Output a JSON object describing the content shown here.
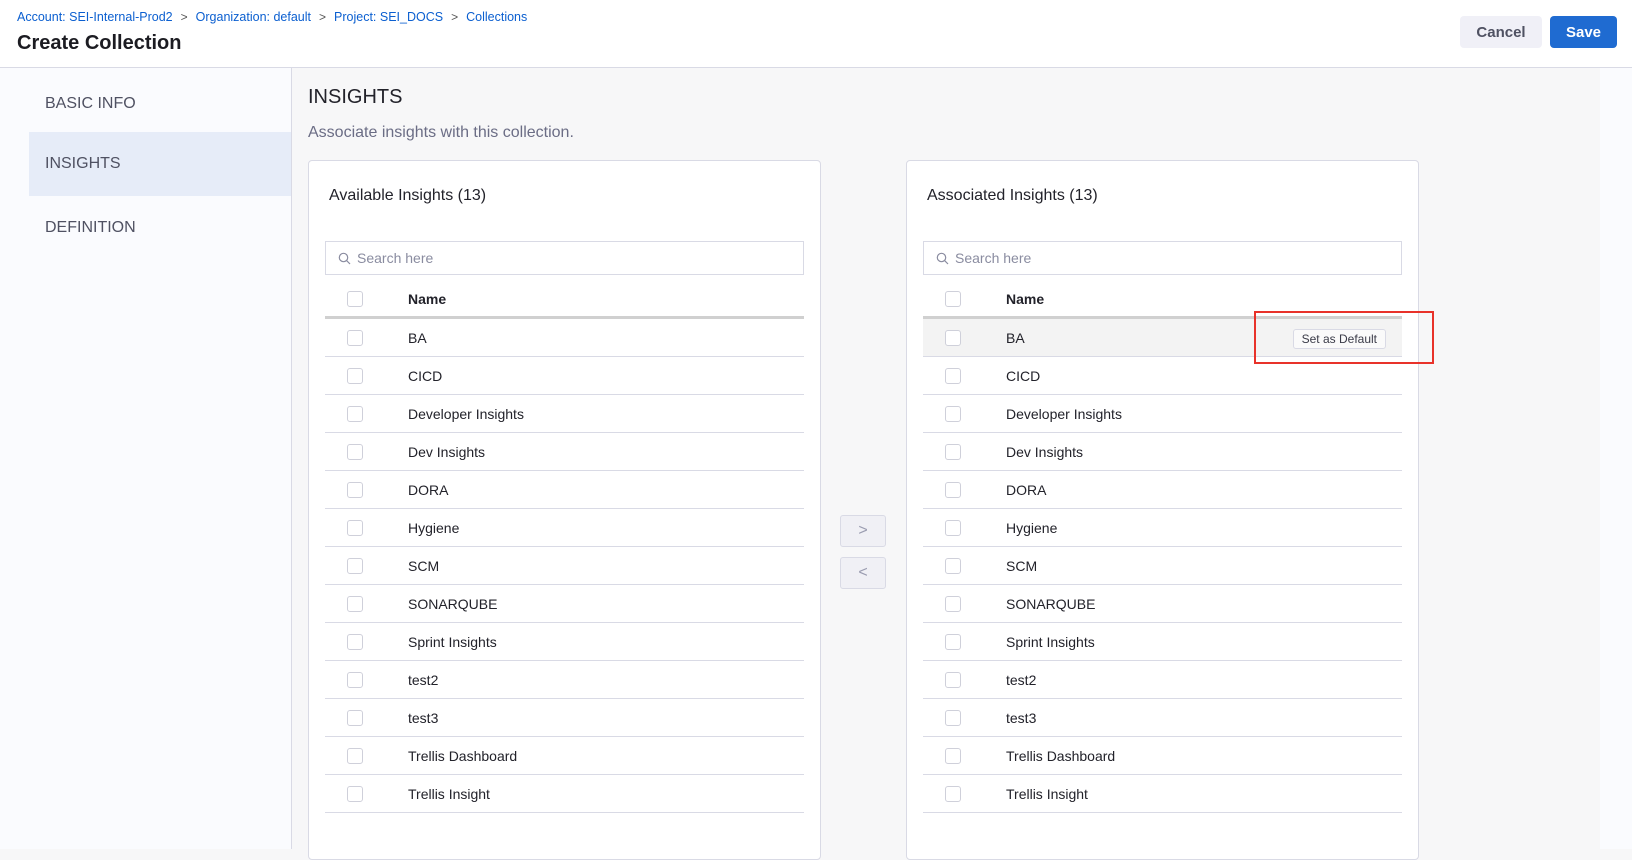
{
  "breadcrumbs": [
    "Account: SEI-Internal-Prod2",
    "Organization: default",
    "Project: SEI_DOCS",
    "Collections"
  ],
  "page_title": "Create Collection",
  "actions": {
    "cancel": "Cancel",
    "save": "Save"
  },
  "sidebar": {
    "items": [
      {
        "label": "BASIC INFO"
      },
      {
        "label": "INSIGHTS",
        "active": true
      },
      {
        "label": "DEFINITION"
      }
    ]
  },
  "section": {
    "title": "INSIGHTS",
    "subtitle": "Associate insights with this collection."
  },
  "available": {
    "title": "Available Insights (13)",
    "search_placeholder": "Search here",
    "column": "Name",
    "items": [
      "BA",
      "CICD",
      "Developer Insights",
      "Dev Insights",
      "DORA",
      "Hygiene",
      "SCM",
      "SONARQUBE",
      "Sprint Insights",
      "test2",
      "test3",
      "Trellis Dashboard",
      "Trellis Insight"
    ]
  },
  "associated": {
    "title": "Associated Insights (13)",
    "search_placeholder": "Search here",
    "column": "Name",
    "set_default_label": "Set as Default",
    "items": [
      "BA",
      "CICD",
      "Developer Insights",
      "Dev Insights",
      "DORA",
      "Hygiene",
      "SCM",
      "SONARQUBE",
      "Sprint Insights",
      "test2",
      "test3",
      "Trellis Dashboard",
      "Trellis Insight"
    ]
  },
  "transfer": {
    "move_right": ">",
    "move_left": "<"
  },
  "colors": {
    "accent": "#1f6bd1",
    "highlight": "#e8322a"
  }
}
